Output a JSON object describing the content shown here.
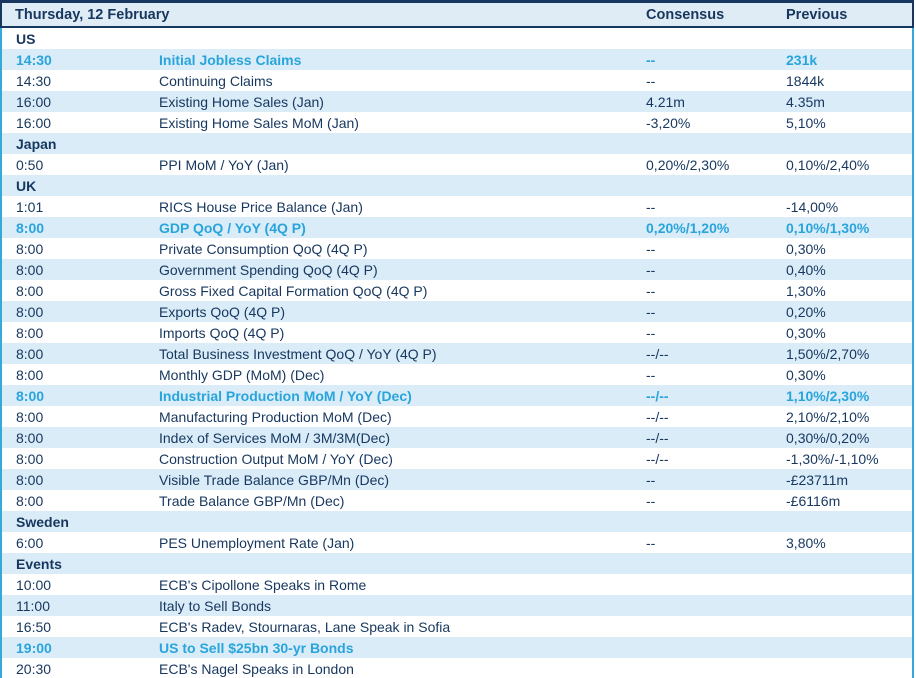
{
  "header": {
    "title": "Thursday, 12 February",
    "consensus_label": "Consensus",
    "previous_label": "Previous"
  },
  "sections": [
    {
      "name": "US",
      "rows": [
        {
          "time": "14:30",
          "event": "Initial Jobless Claims",
          "consensus": "--",
          "previous": "231k",
          "highlight": true
        },
        {
          "time": "14:30",
          "event": "Continuing Claims",
          "consensus": "--",
          "previous": "1844k"
        },
        {
          "time": "16:00",
          "event": "Existing Home Sales (Jan)",
          "consensus": "4.21m",
          "previous": "4.35m"
        },
        {
          "time": "16:00",
          "event": "Existing Home Sales MoM (Jan)",
          "consensus": "-3,20%",
          "previous": "5,10%"
        }
      ]
    },
    {
      "name": "Japan",
      "rows": [
        {
          "time": "0:50",
          "event": "PPI MoM / YoY (Jan)",
          "consensus": "0,20%/2,30%",
          "previous": "0,10%/2,40%"
        }
      ]
    },
    {
      "name": "UK",
      "rows": [
        {
          "time": "1:01",
          "event": "RICS House Price Balance (Jan)",
          "consensus": "--",
          "previous": "-14,00%"
        },
        {
          "time": "8:00",
          "event": "GDP QoQ / YoY (4Q P)",
          "consensus": "0,20%/1,20%",
          "previous": "0,10%/1,30%",
          "highlight": true
        },
        {
          "time": "8:00",
          "event": "Private Consumption QoQ (4Q P)",
          "consensus": "--",
          "previous": "0,30%"
        },
        {
          "time": "8:00",
          "event": "Government Spending QoQ (4Q P)",
          "consensus": "--",
          "previous": "0,40%"
        },
        {
          "time": "8:00",
          "event": "Gross Fixed Capital Formation QoQ (4Q P)",
          "consensus": "--",
          "previous": "1,30%"
        },
        {
          "time": "8:00",
          "event": "Exports QoQ (4Q P)",
          "consensus": "--",
          "previous": "0,20%"
        },
        {
          "time": "8:00",
          "event": "Imports QoQ (4Q P)",
          "consensus": "--",
          "previous": "0,30%"
        },
        {
          "time": "8:00",
          "event": "Total Business Investment QoQ / YoY (4Q P)",
          "consensus": "--/--",
          "previous": "1,50%/2,70%"
        },
        {
          "time": "8:00",
          "event": "Monthly GDP (MoM) (Dec)",
          "consensus": "--",
          "previous": "0,30%"
        },
        {
          "time": "8:00",
          "event": "Industrial Production MoM / YoY (Dec)",
          "consensus": "--/--",
          "previous": "1,10%/2,30%",
          "highlight": true
        },
        {
          "time": "8:00",
          "event": "Manufacturing Production MoM (Dec)",
          "consensus": "--/--",
          "previous": "2,10%/2,10%"
        },
        {
          "time": "8:00",
          "event": "Index of Services MoM / 3M/3M(Dec)",
          "consensus": "--/--",
          "previous": "0,30%/0,20%"
        },
        {
          "time": "8:00",
          "event": "Construction Output MoM / YoY (Dec)",
          "consensus": "--/--",
          "previous": "-1,30%/-1,10%"
        },
        {
          "time": "8:00",
          "event": "Visible Trade Balance GBP/Mn (Dec)",
          "consensus": "--",
          "previous": "-£23711m"
        },
        {
          "time": "8:00",
          "event": "Trade Balance GBP/Mn (Dec)",
          "consensus": "--",
          "previous": "-£6116m"
        }
      ]
    },
    {
      "name": "Sweden",
      "rows": [
        {
          "time": "6:00",
          "event": "PES Unemployment Rate (Jan)",
          "consensus": "--",
          "previous": "3,80%"
        }
      ]
    },
    {
      "name": "Events",
      "rows": [
        {
          "time": "10:00",
          "event": "ECB's Cipollone Speaks in Rome",
          "consensus": "",
          "previous": ""
        },
        {
          "time": "11:00",
          "event": "Italy to Sell Bonds",
          "consensus": "",
          "previous": ""
        },
        {
          "time": "16:50",
          "event": "ECB's Radev, Stournaras, Lane Speak in Sofia",
          "consensus": "",
          "previous": ""
        },
        {
          "time": "19:00",
          "event": "US to Sell $25bn 30-yr Bonds",
          "consensus": "",
          "previous": "",
          "highlight": true
        },
        {
          "time": "20:30",
          "event": "ECB's Nagel Speaks in London",
          "consensus": "",
          "previous": ""
        }
      ]
    }
  ],
  "colors": {
    "navy_text": "#17375E",
    "highlight_cyan": "#29A5DC",
    "row_shade": "#D9ECF8",
    "header_bg": "#DFEBF5",
    "border_cyan": "#35A9DA"
  }
}
